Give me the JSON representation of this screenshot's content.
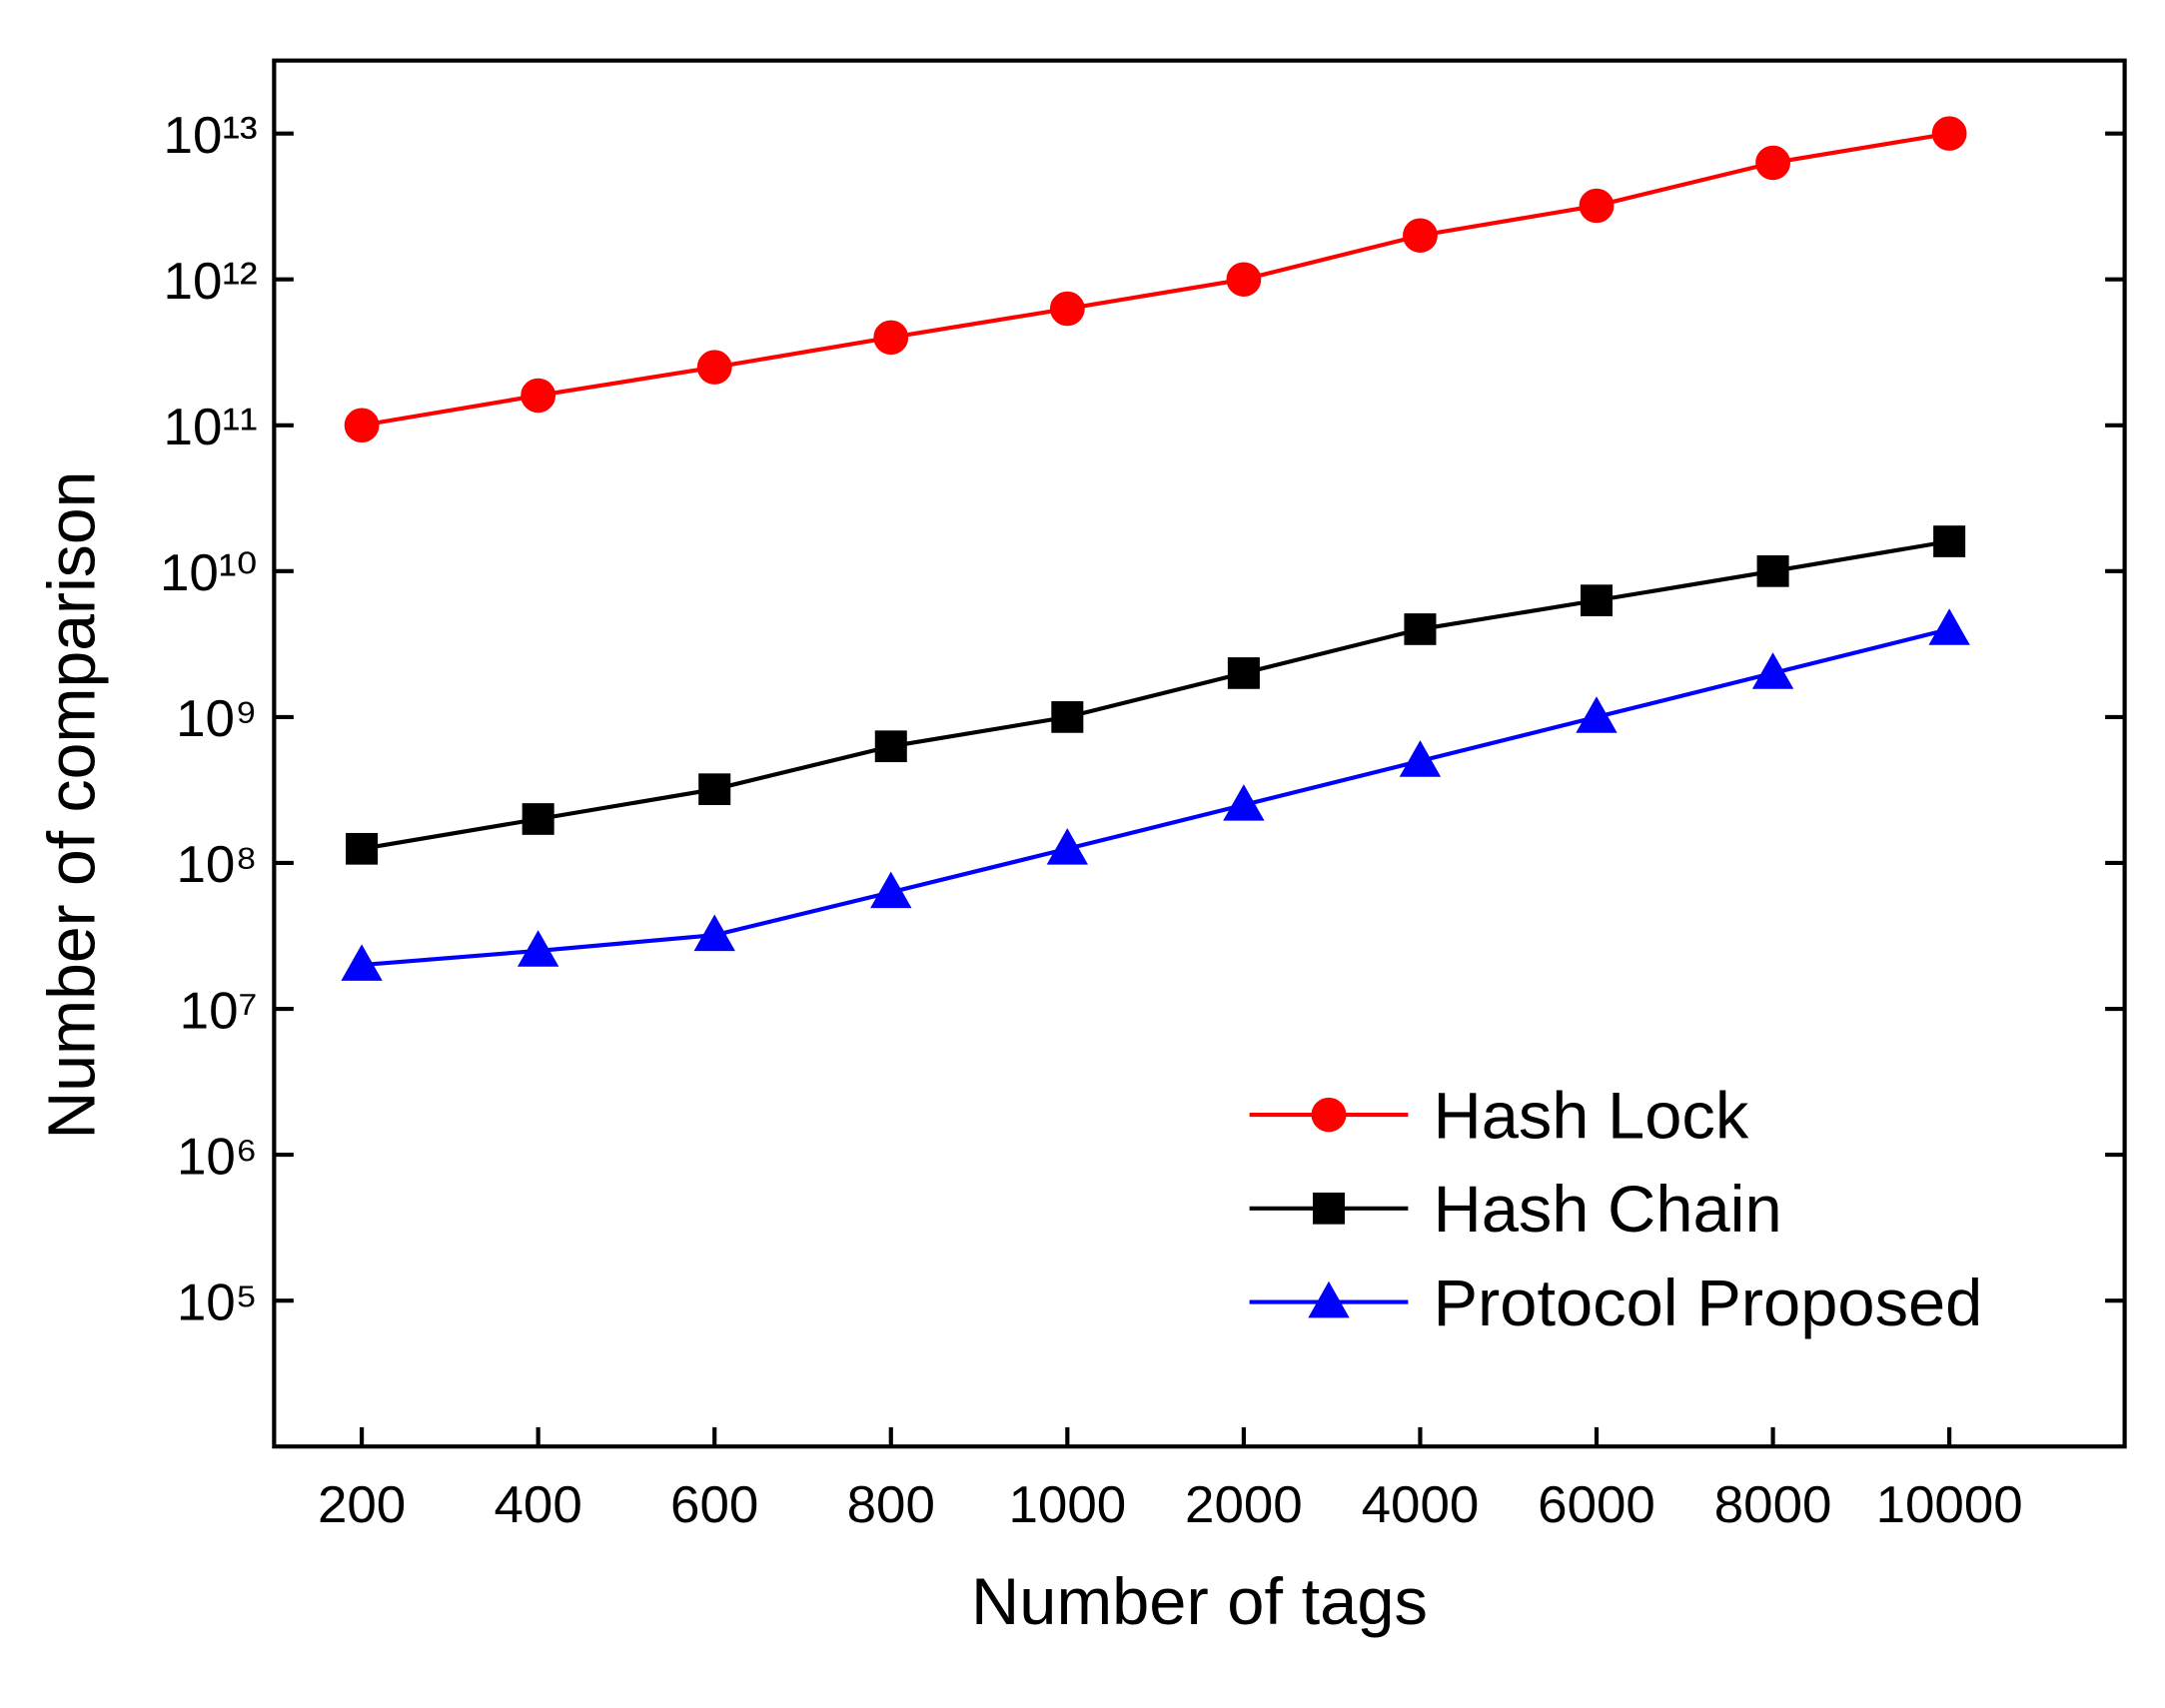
{
  "chart_data": {
    "type": "line",
    "x_label": "Number of tags",
    "y_label": "Number of comparison",
    "categories": [
      "200",
      "400",
      "600",
      "800",
      "1000",
      "2000",
      "4000",
      "6000",
      "8000",
      "10000"
    ],
    "y_scale": "log",
    "ylim": [
      10000,
      31622776601684
    ],
    "yticks": [
      {
        "value": 100000,
        "label": "10⁵"
      },
      {
        "value": 1000000,
        "label": "10⁶"
      },
      {
        "value": 10000000,
        "label": "10⁷"
      },
      {
        "value": 100000000,
        "label": "10⁸"
      },
      {
        "value": 1000000000,
        "label": "10⁹"
      },
      {
        "value": 10000000000,
        "label": "10¹⁰"
      },
      {
        "value": 100000000000,
        "label": "10¹¹"
      },
      {
        "value": 1000000000000,
        "label": "10¹²"
      },
      {
        "value": 10000000000000,
        "label": "10¹³"
      }
    ],
    "grid": false,
    "legend": "lower right",
    "series": [
      {
        "name": "Hash Lock",
        "color": "#ff0000",
        "marker": "circle",
        "values": [
          100000000000,
          160000000000,
          250000000000,
          400000000000,
          630000000000,
          1000000000000,
          2000000000000,
          3200000000000,
          6300000000000,
          10000000000000
        ]
      },
      {
        "name": "Hash Chain",
        "color": "#000000",
        "marker": "square",
        "values": [
          125000000,
          200000000,
          320000000,
          630000000,
          1000000000,
          2000000000,
          4000000000,
          6300000000,
          10000000000,
          16000000000
        ]
      },
      {
        "name": "Protocol Proposed",
        "color": "#0000ff",
        "marker": "triangle",
        "values": [
          20000000,
          25000000,
          32000000,
          63000000,
          125000000,
          250000000,
          500000000,
          1000000000,
          2000000000,
          4000000000
        ]
      }
    ]
  }
}
